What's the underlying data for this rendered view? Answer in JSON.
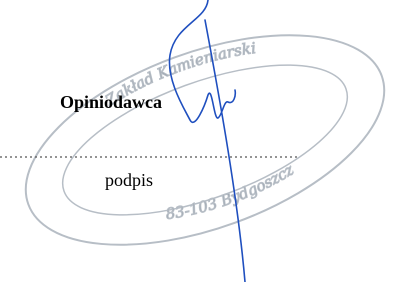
{
  "form": {
    "role_label": "Opiniodawca",
    "signature_label": "podpis"
  },
  "stamp": {
    "top_line": "Zakład Kamieniarski",
    "bottom_line": "83-103 Bydgoszcz"
  }
}
